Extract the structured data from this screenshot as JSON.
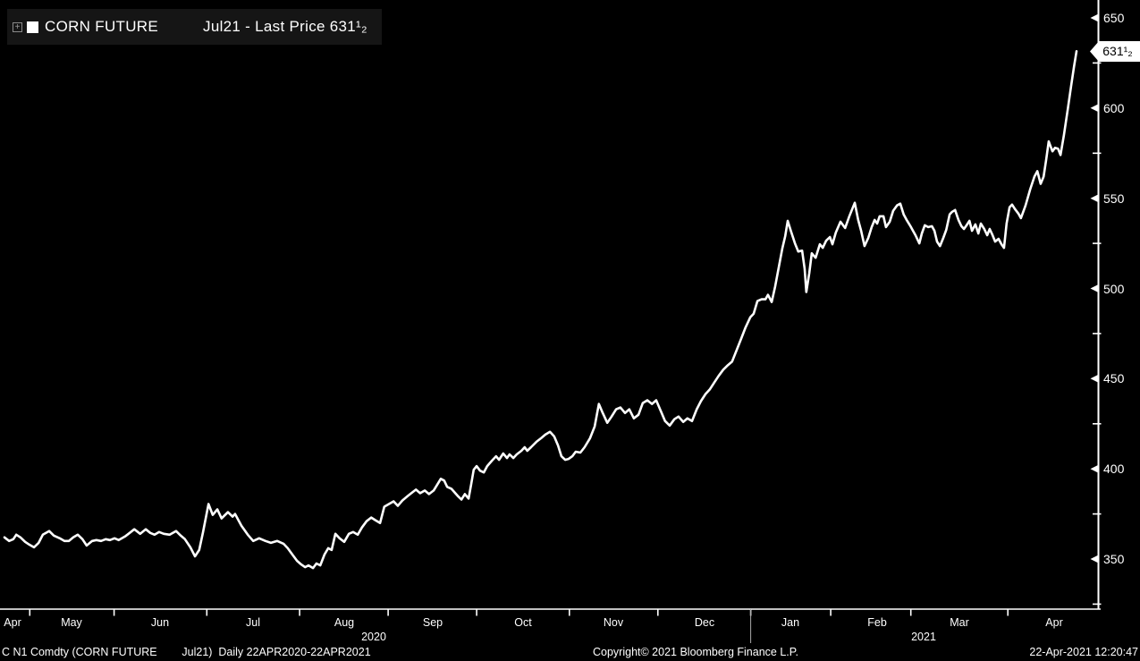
{
  "legend": {
    "expand_icon_glyph": "+",
    "series_name": "CORN FUTURE",
    "contract_and_price": "Jul21 - Last Price 631¹₂"
  },
  "price_bubble": {
    "text": "631¹₂"
  },
  "footer": {
    "left": "C N1 Comdty (CORN FUTURE        Jul21)  Daily 22APR2020-22APR2021",
    "center": "Copyright© 2021 Bloomberg Finance L.P.",
    "right": "22-Apr-2021 12:20:47"
  },
  "colors": {
    "background": "#000000",
    "foreground": "#ffffff",
    "legend_background": "#151515",
    "bubble_background": "#ffffff",
    "bubble_text": "#000000",
    "dim_icon": "#9a9a9a",
    "year_divider": "#aaaaaa"
  },
  "chart_data": {
    "type": "line",
    "title": "CORN FUTURE Jul21 - Last Price",
    "period": "Daily 22APR2020-22APR2021",
    "last_price": 631.5,
    "grid": false,
    "legend_position": "top-left",
    "x_axis": {
      "unit": "trading-day offset from 22-Apr-2020",
      "domain_days": [
        0,
        254.3
      ],
      "month_tick_days": [
        6,
        26,
        48,
        70,
        91,
        112,
        134,
        155,
        177,
        196,
        215,
        238
      ],
      "month_labels": [
        {
          "label": "Apr",
          "day": 2
        },
        {
          "label": "May",
          "day": 16
        },
        {
          "label": "Jun",
          "day": 37
        },
        {
          "label": "Jul",
          "day": 59
        },
        {
          "label": "Aug",
          "day": 80.5
        },
        {
          "label": "Sep",
          "day": 101.5
        },
        {
          "label": "Oct",
          "day": 123
        },
        {
          "label": "Nov",
          "day": 144.5
        },
        {
          "label": "Dec",
          "day": 166
        },
        {
          "label": "Jan",
          "day": 186.5
        },
        {
          "label": "Feb",
          "day": 207
        },
        {
          "label": "Mar",
          "day": 226.5
        },
        {
          "label": "Apr",
          "day": 249
        }
      ],
      "year_labels": [
        {
          "label": "2020",
          "day": 87.5
        },
        {
          "label": "2021",
          "day": 218
        }
      ],
      "year_divider_day": 177
    },
    "y_axis": {
      "side": "right",
      "ticks": [
        350,
        400,
        450,
        500,
        550,
        600,
        650
      ],
      "minor_ticks": [
        325,
        375,
        425,
        475,
        525,
        575,
        625
      ],
      "range": [
        322,
        660
      ]
    },
    "points": [
      [
        0,
        362
      ],
      [
        1.1,
        360
      ],
      [
        2.1,
        361
      ],
      [
        2.8,
        363.5
      ],
      [
        3.8,
        362
      ],
      [
        4.9,
        359.5
      ],
      [
        5.9,
        358
      ],
      [
        7,
        356.5
      ],
      [
        8.1,
        359
      ],
      [
        9.1,
        363.5
      ],
      [
        10.6,
        365.5
      ],
      [
        11.7,
        363
      ],
      [
        13.1,
        361.5
      ],
      [
        14.2,
        360
      ],
      [
        15.3,
        360
      ],
      [
        16.3,
        362
      ],
      [
        17.4,
        363.5
      ],
      [
        18.5,
        361
      ],
      [
        19.5,
        357.5
      ],
      [
        20.8,
        360
      ],
      [
        21.8,
        360.5
      ],
      [
        22.9,
        360
      ],
      [
        24,
        361
      ],
      [
        25,
        360.5
      ],
      [
        26.1,
        361.5
      ],
      [
        27.1,
        360.5
      ],
      [
        28.6,
        362.5
      ],
      [
        29.7,
        364.5
      ],
      [
        30.8,
        366.5
      ],
      [
        32.2,
        364
      ],
      [
        33.5,
        366.5
      ],
      [
        34.6,
        364.5
      ],
      [
        35.6,
        363.5
      ],
      [
        36.7,
        365
      ],
      [
        37.8,
        364
      ],
      [
        39.2,
        363.5
      ],
      [
        40.7,
        365.5
      ],
      [
        41.8,
        363
      ],
      [
        42.8,
        361
      ],
      [
        44.1,
        356.5
      ],
      [
        45.2,
        351.5
      ],
      [
        46.2,
        355
      ],
      [
        47.1,
        365
      ],
      [
        48.4,
        380.5
      ],
      [
        49.4,
        374.5
      ],
      [
        50.5,
        377.5
      ],
      [
        51.5,
        372.5
      ],
      [
        53,
        376
      ],
      [
        54.1,
        373.5
      ],
      [
        54.7,
        375
      ],
      [
        56.2,
        368.5
      ],
      [
        57.7,
        363.5
      ],
      [
        59,
        360
      ],
      [
        60.4,
        361.5
      ],
      [
        61.9,
        360
      ],
      [
        63.2,
        359
      ],
      [
        64.7,
        360
      ],
      [
        66.2,
        358.5
      ],
      [
        67.2,
        356
      ],
      [
        68.3,
        352.5
      ],
      [
        69.4,
        349
      ],
      [
        70.4,
        347
      ],
      [
        71.3,
        345.5
      ],
      [
        72.1,
        346.5
      ],
      [
        73.2,
        345
      ],
      [
        74,
        347.5
      ],
      [
        74.9,
        346.5
      ],
      [
        75.9,
        352.5
      ],
      [
        76.8,
        356
      ],
      [
        77.6,
        355
      ],
      [
        78.5,
        364
      ],
      [
        79.5,
        361.5
      ],
      [
        80.6,
        359.5
      ],
      [
        81.7,
        364
      ],
      [
        82.7,
        365
      ],
      [
        83.8,
        363.5
      ],
      [
        84.8,
        367.5
      ],
      [
        85.9,
        371
      ],
      [
        87,
        373
      ],
      [
        88,
        371.5
      ],
      [
        89.1,
        370
      ],
      [
        90.1,
        379
      ],
      [
        91.2,
        380.5
      ],
      [
        92.3,
        382
      ],
      [
        93.3,
        379.5
      ],
      [
        94.4,
        382.5
      ],
      [
        95.7,
        385
      ],
      [
        96.5,
        386.5
      ],
      [
        97.6,
        388.5
      ],
      [
        98.6,
        386.5
      ],
      [
        99.7,
        388
      ],
      [
        100.7,
        386
      ],
      [
        101.8,
        388
      ],
      [
        103.5,
        394.5
      ],
      [
        104.3,
        393.5
      ],
      [
        105,
        390
      ],
      [
        106,
        389
      ],
      [
        107.5,
        385
      ],
      [
        108.4,
        383
      ],
      [
        109.2,
        386
      ],
      [
        110.1,
        383.5
      ],
      [
        110.7,
        391.5
      ],
      [
        111.3,
        399.5
      ],
      [
        112,
        401.5
      ],
      [
        112.8,
        399
      ],
      [
        113.7,
        398
      ],
      [
        114.5,
        401.5
      ],
      [
        115.6,
        404.5
      ],
      [
        116.6,
        407
      ],
      [
        117.3,
        405
      ],
      [
        118.3,
        408.5
      ],
      [
        119.2,
        406
      ],
      [
        119.8,
        408
      ],
      [
        120.7,
        406
      ],
      [
        121.5,
        408
      ],
      [
        122.6,
        410
      ],
      [
        123.4,
        412
      ],
      [
        124,
        410
      ],
      [
        124.9,
        412
      ],
      [
        126.2,
        415
      ],
      [
        127.3,
        417
      ],
      [
        128.3,
        419
      ],
      [
        129.4,
        420.5
      ],
      [
        130.4,
        418
      ],
      [
        131.3,
        413
      ],
      [
        132.1,
        407
      ],
      [
        133,
        405
      ],
      [
        133.8,
        405.5
      ],
      [
        134.7,
        407
      ],
      [
        135.5,
        409.5
      ],
      [
        136.6,
        409
      ],
      [
        137.6,
        412
      ],
      [
        138.9,
        417
      ],
      [
        140,
        423.5
      ],
      [
        141,
        436
      ],
      [
        141.9,
        431
      ],
      [
        143,
        425.5
      ],
      [
        144,
        429
      ],
      [
        145.1,
        433
      ],
      [
        146.1,
        434
      ],
      [
        147.2,
        431
      ],
      [
        148.2,
        433
      ],
      [
        149.3,
        428
      ],
      [
        150.4,
        430
      ],
      [
        151.4,
        436.5
      ],
      [
        152.5,
        438
      ],
      [
        153.6,
        436
      ],
      [
        154.6,
        438
      ],
      [
        155.7,
        432
      ],
      [
        156.7,
        426.5
      ],
      [
        157.8,
        424
      ],
      [
        158.9,
        427.5
      ],
      [
        159.9,
        429
      ],
      [
        161,
        426
      ],
      [
        162,
        428
      ],
      [
        163.1,
        426.5
      ],
      [
        164.2,
        433
      ],
      [
        165.2,
        437.5
      ],
      [
        166.3,
        441.5
      ],
      [
        167.3,
        444
      ],
      [
        168.4,
        448
      ],
      [
        169.4,
        451.5
      ],
      [
        170.5,
        455
      ],
      [
        171.6,
        457.5
      ],
      [
        172.6,
        459.5
      ],
      [
        173.7,
        466
      ],
      [
        174.8,
        472.5
      ],
      [
        175.8,
        478.5
      ],
      [
        176.9,
        484
      ],
      [
        177.7,
        486
      ],
      [
        178.6,
        493
      ],
      [
        179.6,
        494
      ],
      [
        180.5,
        494
      ],
      [
        181.1,
        496.5
      ],
      [
        182,
        492.5
      ],
      [
        182.8,
        501
      ],
      [
        183.7,
        512
      ],
      [
        184.5,
        522
      ],
      [
        185.2,
        529
      ],
      [
        185.8,
        537.5
      ],
      [
        186.6,
        531.5
      ],
      [
        187.5,
        525
      ],
      [
        188.3,
        520.5
      ],
      [
        189.2,
        521
      ],
      [
        189.8,
        511
      ],
      [
        190.2,
        498
      ],
      [
        190.9,
        508.5
      ],
      [
        191.5,
        519.5
      ],
      [
        192.4,
        517
      ],
      [
        193.4,
        524.5
      ],
      [
        194.1,
        522.5
      ],
      [
        194.9,
        526.5
      ],
      [
        195.8,
        528.5
      ],
      [
        196.4,
        524.5
      ],
      [
        197.2,
        531
      ],
      [
        198.3,
        537
      ],
      [
        199.4,
        533.5
      ],
      [
        200.4,
        540
      ],
      [
        201.7,
        547.5
      ],
      [
        202.5,
        538
      ],
      [
        203.2,
        532
      ],
      [
        204,
        523.5
      ],
      [
        204.9,
        528
      ],
      [
        205.7,
        534
      ],
      [
        206.4,
        538
      ],
      [
        207,
        536
      ],
      [
        207.6,
        540
      ],
      [
        208.5,
        540
      ],
      [
        209.1,
        534
      ],
      [
        210,
        537
      ],
      [
        210.8,
        543
      ],
      [
        211.7,
        546
      ],
      [
        212.5,
        547
      ],
      [
        213.3,
        541
      ],
      [
        214,
        538
      ],
      [
        214.9,
        534.5
      ],
      [
        215.5,
        532
      ],
      [
        216.1,
        529.5
      ],
      [
        217,
        525
      ],
      [
        217.6,
        530.5
      ],
      [
        218.3,
        535
      ],
      [
        219.1,
        534
      ],
      [
        220,
        534.5
      ],
      [
        220.6,
        532
      ],
      [
        221.2,
        526
      ],
      [
        221.9,
        523.5
      ],
      [
        222.7,
        528
      ],
      [
        223.4,
        532.5
      ],
      [
        224.2,
        541
      ],
      [
        224.8,
        542.5
      ],
      [
        225.5,
        543.5
      ],
      [
        226.3,
        538
      ],
      [
        227,
        534.5
      ],
      [
        227.6,
        533
      ],
      [
        228.2,
        535
      ],
      [
        228.9,
        537.5
      ],
      [
        229.5,
        532
      ],
      [
        230.3,
        535.5
      ],
      [
        231,
        530.5
      ],
      [
        231.6,
        536
      ],
      [
        232.4,
        533
      ],
      [
        233.1,
        529.5
      ],
      [
        233.7,
        533
      ],
      [
        234.3,
        530
      ],
      [
        235,
        526
      ],
      [
        235.8,
        527.5
      ],
      [
        236.5,
        524.5
      ],
      [
        237.1,
        522.5
      ],
      [
        237.7,
        536
      ],
      [
        238.4,
        545
      ],
      [
        239,
        546.5
      ],
      [
        239.7,
        544
      ],
      [
        240.5,
        541.5
      ],
      [
        241.1,
        539
      ],
      [
        242.2,
        546
      ],
      [
        243.3,
        555
      ],
      [
        244.3,
        562
      ],
      [
        245,
        565
      ],
      [
        245.8,
        558
      ],
      [
        246.5,
        562
      ],
      [
        247.1,
        571.5
      ],
      [
        247.7,
        581.5
      ],
      [
        248.6,
        576
      ],
      [
        249.2,
        578
      ],
      [
        249.9,
        577.5
      ],
      [
        250.5,
        574
      ],
      [
        251.3,
        585
      ],
      [
        252.2,
        599
      ],
      [
        253,
        612
      ],
      [
        253.7,
        623
      ],
      [
        254.3,
        631.5
      ]
    ]
  }
}
